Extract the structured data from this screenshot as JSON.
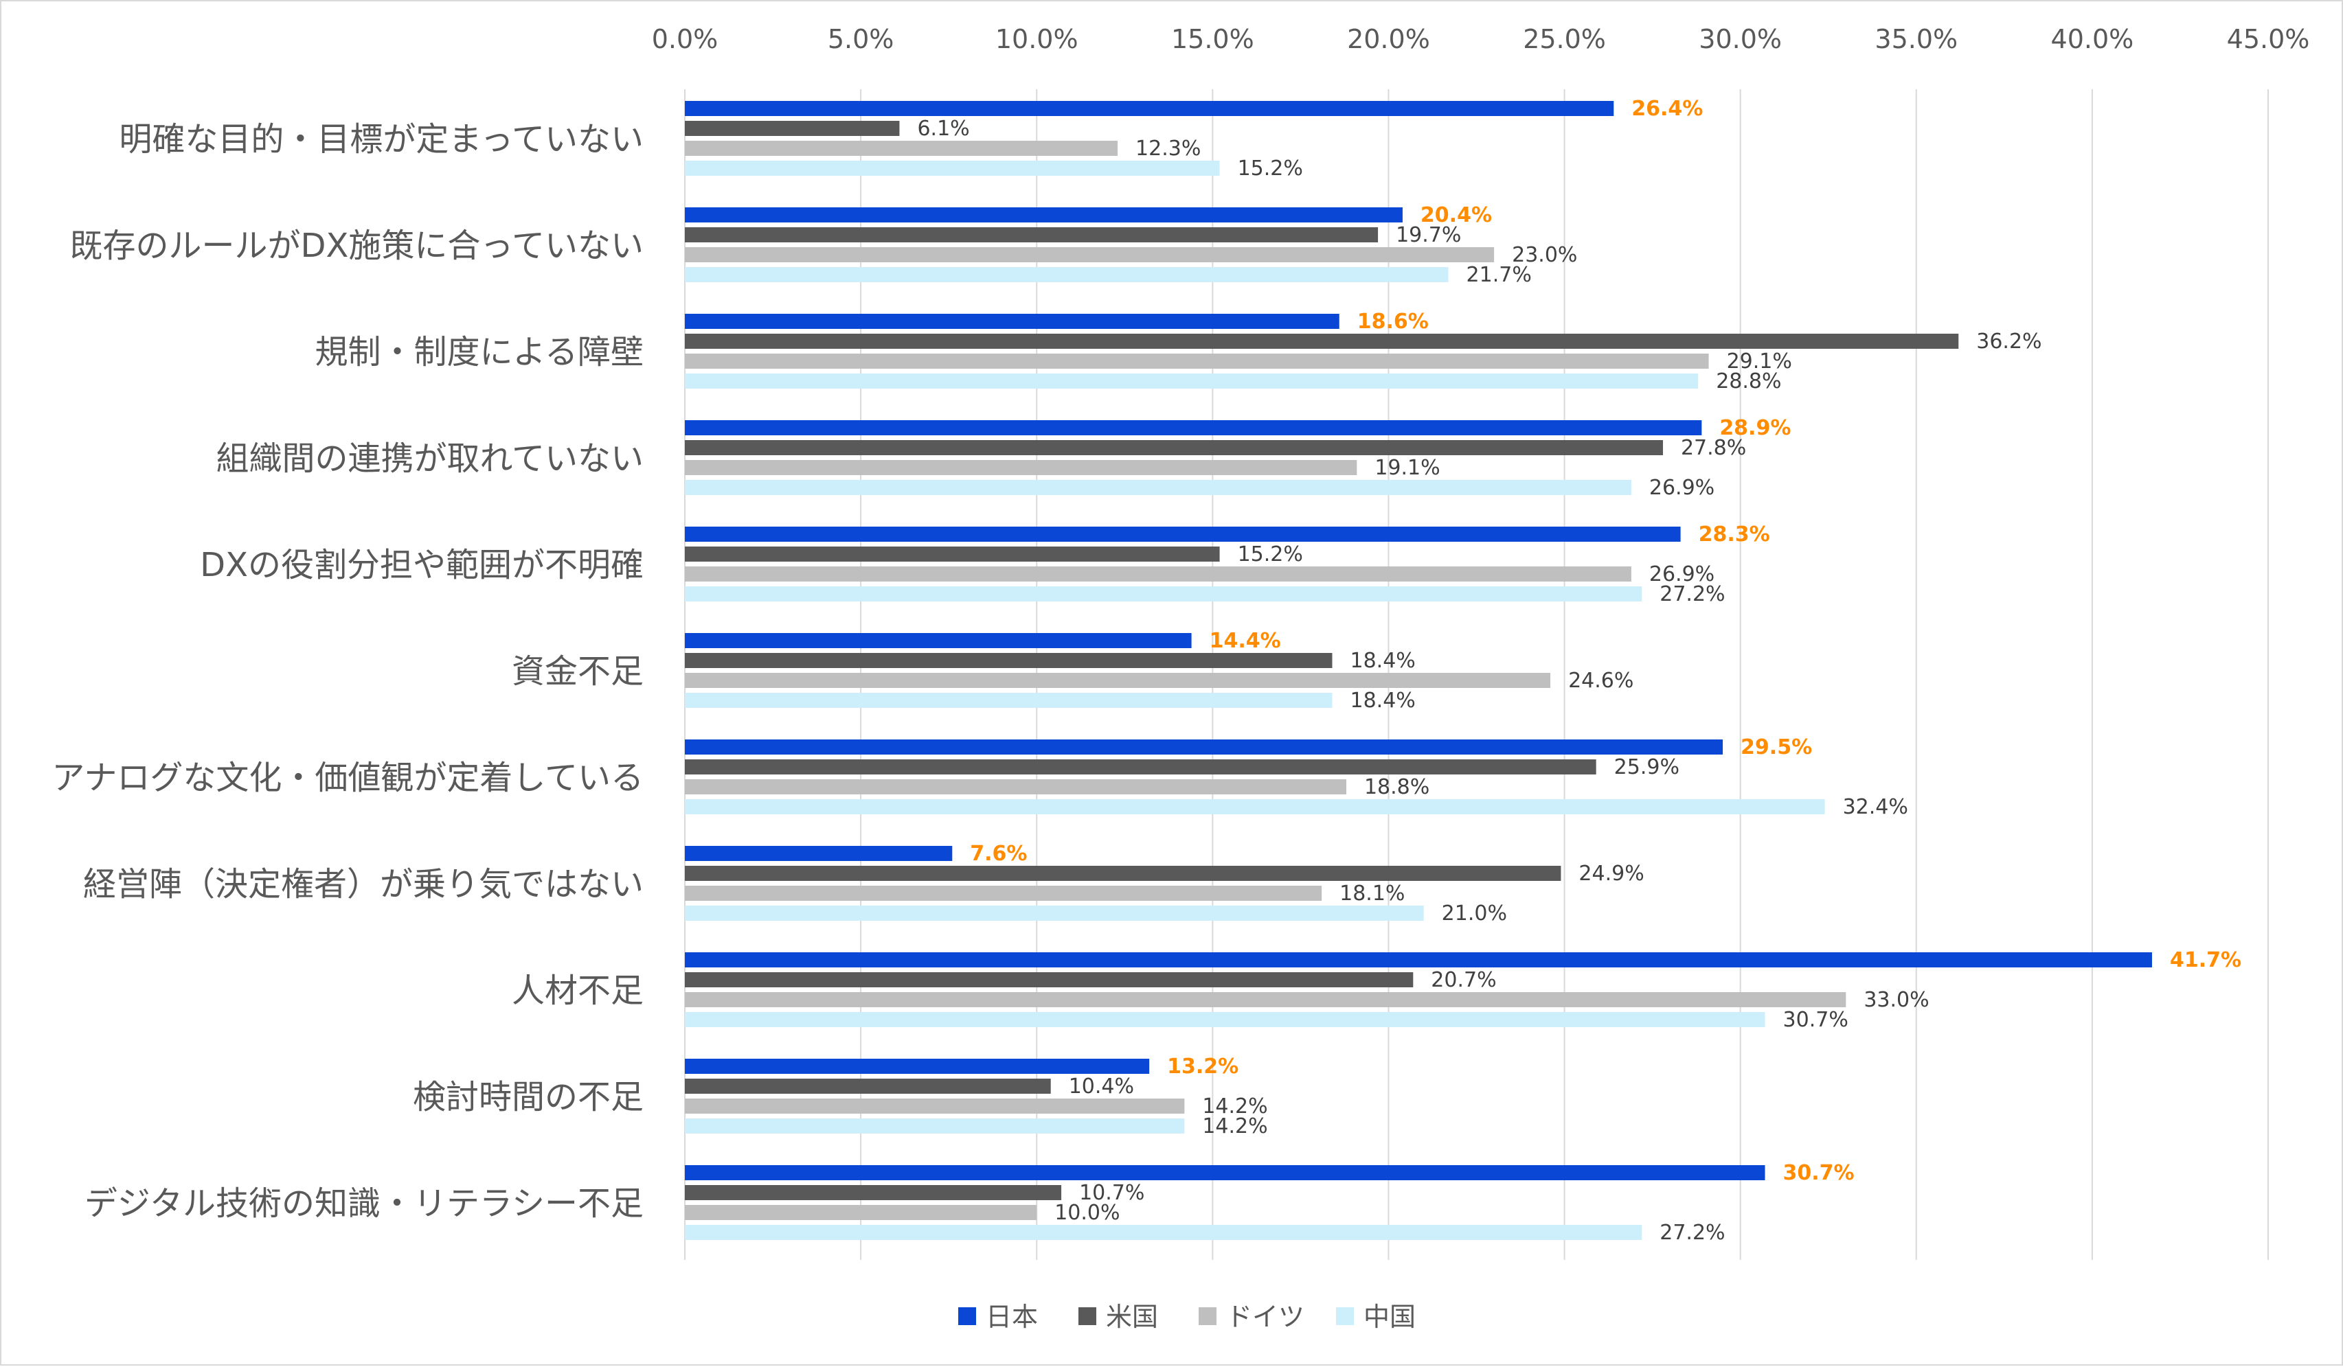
{
  "chart_data": {
    "type": "bar",
    "orientation": "horizontal",
    "xlim": [
      0,
      45
    ],
    "x_ticks": [
      "0.0%",
      "5.0%",
      "10.0%",
      "15.0%",
      "20.0%",
      "25.0%",
      "30.0%",
      "35.0%",
      "40.0%",
      "45.0%"
    ],
    "grid": true,
    "legend_position": "bottom",
    "highlight_color": "#ff8c00",
    "categories": [
      "明確な目的・目標が定まっていない",
      "既存のルールがDX施策に合っていない",
      "規制・制度による障壁",
      "組織間の連携が取れていない",
      "DXの役割分担や範囲が不明確",
      "資金不足",
      "アナログな文化・価値観が定着している",
      "経営陣（決定権者）が乗り気ではない",
      "人材不足",
      "検討時間の不足",
      "デジタル技術の知識・リテラシー不足"
    ],
    "series": [
      {
        "name": "日本",
        "color": "#0a47d4",
        "highlight": true,
        "values": [
          26.4,
          20.4,
          18.6,
          28.9,
          28.3,
          14.4,
          29.5,
          7.6,
          41.7,
          13.2,
          30.7
        ]
      },
      {
        "name": "米国",
        "color": "#595959",
        "highlight": false,
        "values": [
          6.1,
          19.7,
          36.2,
          27.8,
          15.2,
          18.4,
          25.9,
          24.9,
          20.7,
          10.4,
          10.7
        ]
      },
      {
        "name": "ドイツ",
        "color": "#bfbfbf",
        "highlight": false,
        "values": [
          12.3,
          23.0,
          29.1,
          19.1,
          26.9,
          24.6,
          18.8,
          18.1,
          33.0,
          14.2,
          10.0
        ]
      },
      {
        "name": "中国",
        "color": "#cdeefb",
        "highlight": false,
        "values": [
          15.2,
          21.7,
          28.8,
          26.9,
          27.2,
          18.4,
          32.4,
          21.0,
          30.7,
          14.2,
          27.2
        ]
      }
    ]
  }
}
